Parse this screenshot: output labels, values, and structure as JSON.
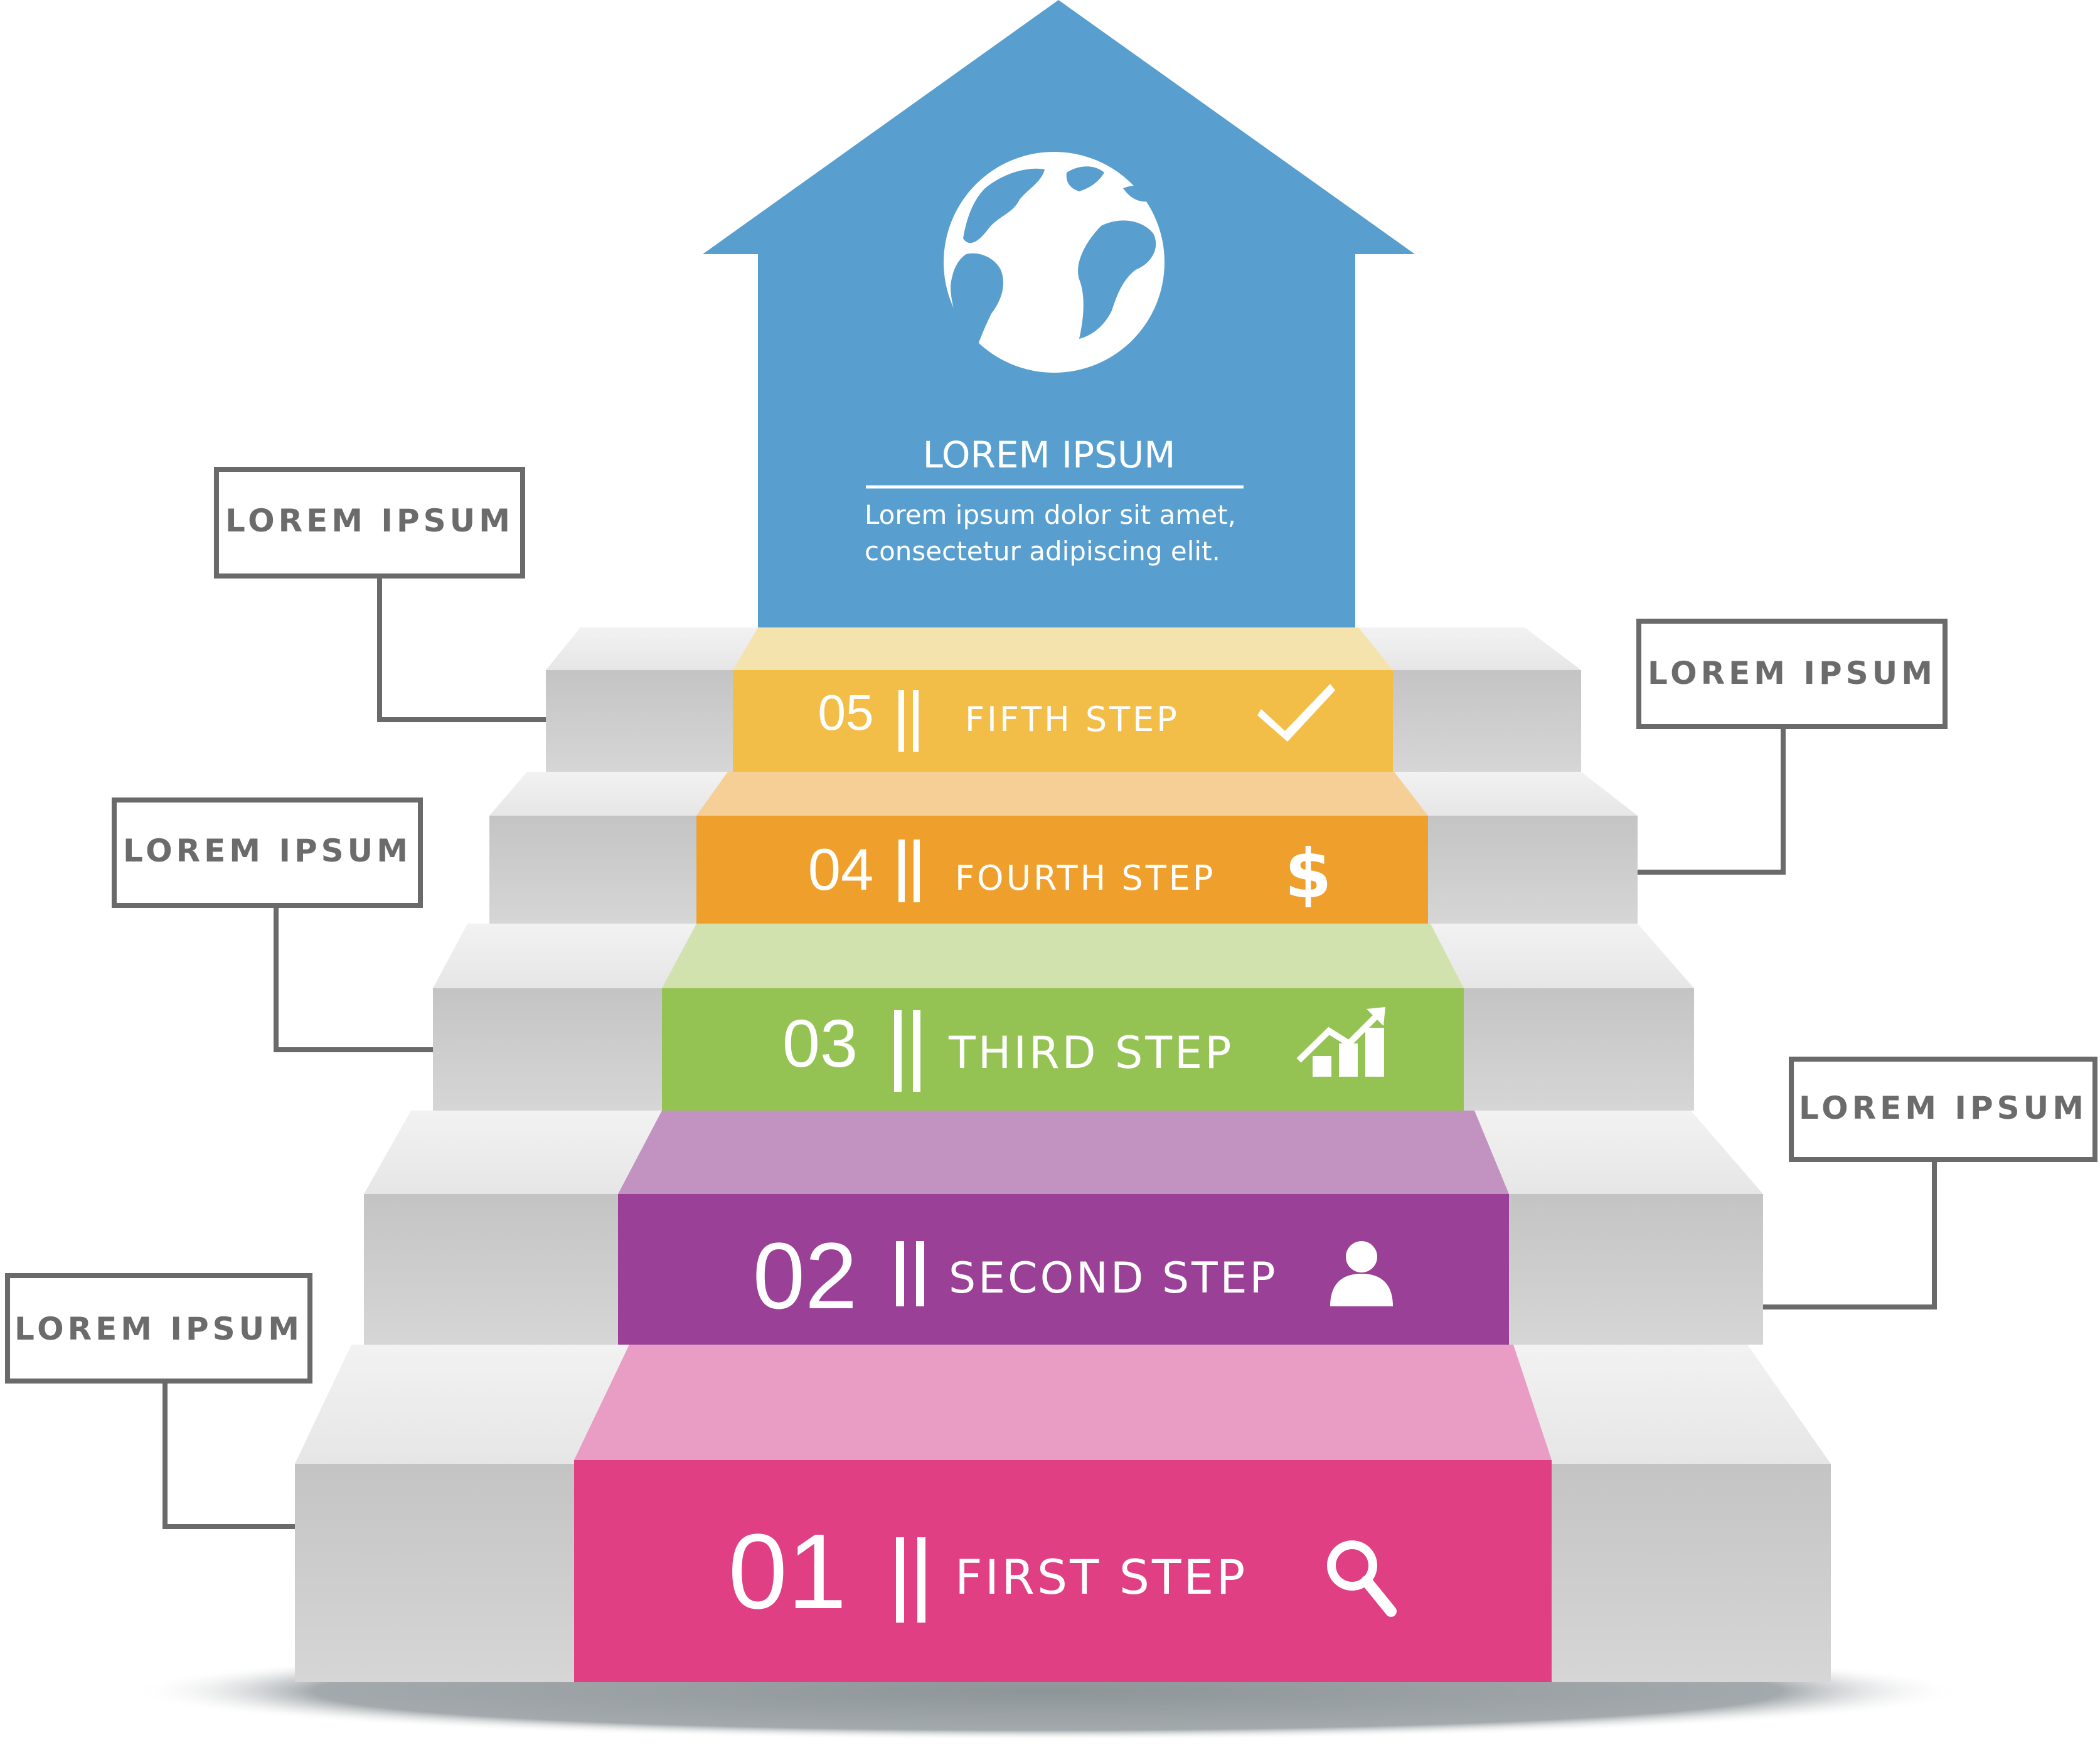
{
  "header": {
    "title": "LOREM IPSUM",
    "description_line1": "Lorem ipsum dolor sit amet,",
    "description_line2": "consectetur adipiscing elit.",
    "icon": "globe-icon",
    "color": "#589FCF"
  },
  "steps": [
    {
      "number": "01",
      "label": "FIRST STEP",
      "icon": "search-icon",
      "color": "#E03F84",
      "tread_color": "#E99CC4"
    },
    {
      "number": "02",
      "label": "SECOND STEP",
      "icon": "user-icon",
      "color": "#9A4096",
      "tread_color": "#C293C1"
    },
    {
      "number": "03",
      "label": "THIRD STEP",
      "icon": "growth-chart-icon",
      "color": "#95C353",
      "tread_color": "#D1E2AE"
    },
    {
      "number": "04",
      "label": "FOURTH STEP",
      "icon": "dollar-icon",
      "color": "#EF9F2C",
      "tread_color": "#F5CF96"
    },
    {
      "number": "05",
      "label": "FIFTH STEP",
      "icon": "check-icon",
      "color": "#F3BE48",
      "tread_color": "#F5E3AE"
    }
  ],
  "side_labels": [
    {
      "text": "LOREM IPSUM",
      "side": "left",
      "step": "05"
    },
    {
      "text": "LOREM IPSUM",
      "side": "left",
      "step": "03"
    },
    {
      "text": "LOREM IPSUM",
      "side": "left",
      "step": "01"
    },
    {
      "text": "LOREM IPSUM",
      "side": "right",
      "step": "04"
    },
    {
      "text": "LOREM IPSUM",
      "side": "right",
      "step": "02"
    }
  ],
  "separator_glyph": "||"
}
